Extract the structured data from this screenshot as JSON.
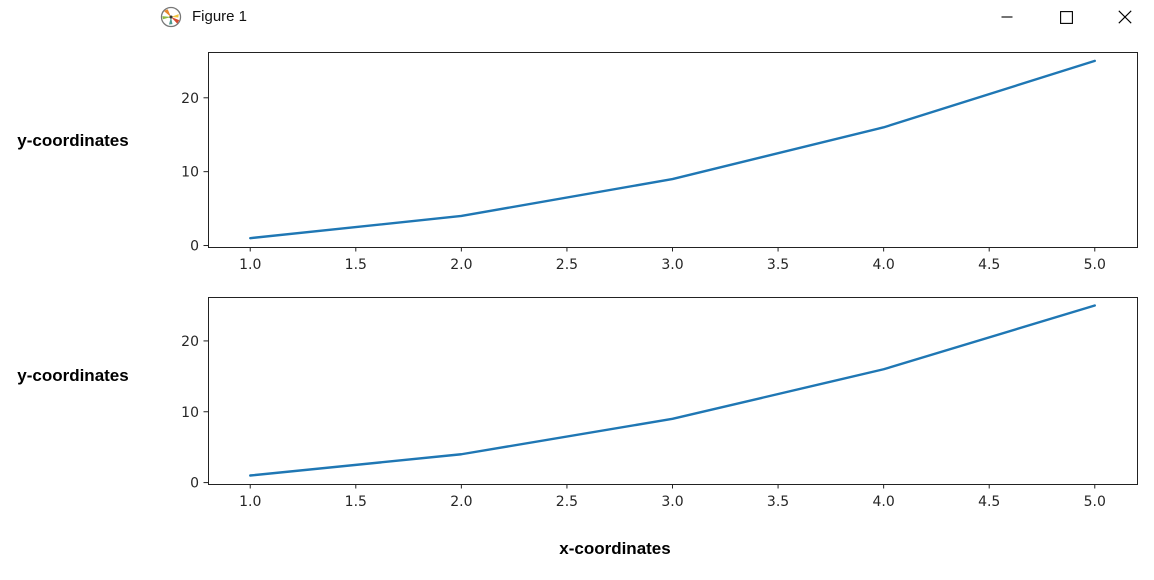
{
  "window": {
    "title": "Figure 1",
    "icon": "matplotlib-logo",
    "controls": [
      {
        "name": "minimize",
        "icon": "minimize-icon"
      },
      {
        "name": "maximize",
        "icon": "maximize-icon"
      },
      {
        "name": "close",
        "icon": "close-icon"
      }
    ]
  },
  "figure": {
    "background": "#ffffff",
    "spine_color": "#222222",
    "tick_text_color": "#262626",
    "line_color": "#1f77b4"
  },
  "chart_data": [
    {
      "type": "line",
      "title": "",
      "xlabel": "",
      "ylabel": "y-coordinates",
      "x": [
        1,
        2,
        3,
        4,
        5
      ],
      "y": [
        1,
        4,
        9,
        16,
        25
      ],
      "xlim": [
        0.8,
        5.2
      ],
      "ylim": [
        -0.2,
        26.2
      ],
      "xticks": [
        1.0,
        1.5,
        2.0,
        2.5,
        3.0,
        3.5,
        4.0,
        4.5,
        5.0
      ],
      "xtick_labels": [
        "1.0",
        "1.5",
        "2.0",
        "2.5",
        "3.0",
        "3.5",
        "4.0",
        "4.5",
        "5.0"
      ],
      "yticks": [
        0,
        10,
        20
      ],
      "ytick_labels": [
        "0",
        "10",
        "20"
      ],
      "line_color": "#1f77b4",
      "grid": false,
      "legend": null
    },
    {
      "type": "line",
      "title": "",
      "xlabel": "x-coordinates",
      "ylabel": "y-coordinates",
      "x": [
        1,
        2,
        3,
        4,
        5
      ],
      "y": [
        1,
        4,
        9,
        16,
        25
      ],
      "xlim": [
        0.8,
        5.2
      ],
      "ylim": [
        -0.2,
        26.2
      ],
      "xticks": [
        1.0,
        1.5,
        2.0,
        2.5,
        3.0,
        3.5,
        4.0,
        4.5,
        5.0
      ],
      "xtick_labels": [
        "1.0",
        "1.5",
        "2.0",
        "2.5",
        "3.0",
        "3.5",
        "4.0",
        "4.5",
        "5.0"
      ],
      "yticks": [
        0,
        10,
        20
      ],
      "ytick_labels": [
        "0",
        "10",
        "20"
      ],
      "line_color": "#1f77b4",
      "grid": false,
      "legend": null
    }
  ]
}
